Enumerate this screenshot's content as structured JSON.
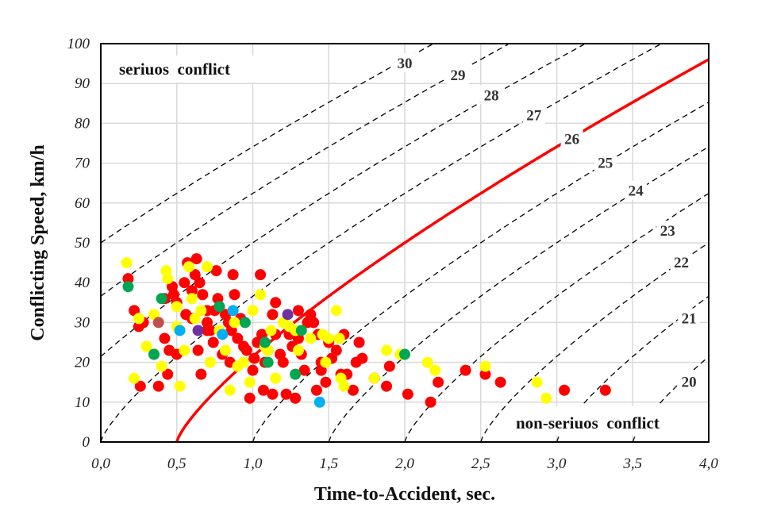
{
  "chart_data": {
    "type": "scatter",
    "title": "",
    "xlabel": "Time-to-Accident, sec.",
    "ylabel": "Conflicting Speed, km/h",
    "xlim": [
      0,
      4.0
    ],
    "ylim": [
      0,
      100
    ],
    "x_ticks": [
      "0,0",
      "0,5",
      "1,0",
      "1,5",
      "2,0",
      "2,5",
      "3,0",
      "3,5",
      "4,0"
    ],
    "y_ticks": [
      "0",
      "10",
      "20",
      "30",
      "40",
      "50",
      "60",
      "70",
      "80",
      "90",
      "100"
    ],
    "grid": true,
    "annotations": {
      "serious": "seriuos  conflict",
      "non_serious": "non-seriuos  conflict"
    },
    "curve_model": {
      "a": 36.6,
      "p": 0.77
    },
    "curves": [
      {
        "label": "30",
        "t0": -1.5,
        "label_at": [
          2.0,
          95
        ],
        "style": "dashed"
      },
      {
        "label": "29",
        "t0": -1.0,
        "label_at": [
          2.35,
          92
        ],
        "style": "dashed"
      },
      {
        "label": "28",
        "t0": -0.5,
        "label_at": [
          2.57,
          87
        ],
        "style": "dashed"
      },
      {
        "label": "27",
        "t0": 0.0,
        "label_at": [
          2.85,
          82
        ],
        "style": "dashed"
      },
      {
        "label": "26",
        "t0": 0.5,
        "label_at": [
          3.1,
          76
        ],
        "style": "threshold"
      },
      {
        "label": "25",
        "t0": 1.0,
        "label_at": [
          3.32,
          70
        ],
        "style": "dashed"
      },
      {
        "label": "24",
        "t0": 1.5,
        "label_at": [
          3.52,
          63
        ],
        "style": "dashed"
      },
      {
        "label": "23",
        "t0": 2.0,
        "label_at": [
          3.73,
          53
        ],
        "style": "dashed"
      },
      {
        "label": "22",
        "t0": 2.5,
        "label_at": [
          3.82,
          45
        ],
        "style": "dashed"
      },
      {
        "label": "21",
        "t0": 3.0,
        "label_at": [
          3.87,
          31
        ],
        "style": "dashed"
      },
      {
        "label": "20",
        "t0": 3.5,
        "label_at": [
          3.87,
          15
        ],
        "style": "dashed"
      }
    ],
    "series": [
      {
        "name": "red",
        "color": "#FF0000",
        "points": [
          [
            0.18,
            41
          ],
          [
            0.22,
            33
          ],
          [
            0.25,
            29
          ],
          [
            0.26,
            14
          ],
          [
            0.35,
            22
          ],
          [
            0.38,
            14
          ],
          [
            0.42,
            36
          ],
          [
            0.42,
            26
          ],
          [
            0.44,
            17
          ],
          [
            0.45,
            23
          ],
          [
            0.47,
            39
          ],
          [
            0.48,
            37
          ],
          [
            0.5,
            35
          ],
          [
            0.5,
            22
          ],
          [
            0.55,
            40
          ],
          [
            0.56,
            32
          ],
          [
            0.57,
            45
          ],
          [
            0.6,
            38
          ],
          [
            0.62,
            42
          ],
          [
            0.63,
            46
          ],
          [
            0.64,
            23
          ],
          [
            0.65,
            40
          ],
          [
            0.66,
            17
          ],
          [
            0.67,
            37
          ],
          [
            0.7,
            33
          ],
          [
            0.7,
            30
          ],
          [
            0.72,
            28
          ],
          [
            0.74,
            25
          ],
          [
            0.76,
            43
          ],
          [
            0.77,
            36
          ],
          [
            0.78,
            34
          ],
          [
            0.8,
            22
          ],
          [
            0.82,
            32
          ],
          [
            0.84,
            30
          ],
          [
            0.86,
            28
          ],
          [
            0.87,
            42
          ],
          [
            0.88,
            37
          ],
          [
            0.9,
            26
          ],
          [
            0.92,
            31
          ],
          [
            0.94,
            24
          ],
          [
            0.96,
            23
          ],
          [
            0.98,
            11
          ],
          [
            1.0,
            18
          ],
          [
            1.01,
            21
          ],
          [
            1.03,
            25
          ],
          [
            1.05,
            42
          ],
          [
            1.06,
            27
          ],
          [
            1.07,
            13
          ],
          [
            1.08,
            20
          ],
          [
            1.1,
            23
          ],
          [
            1.13,
            12
          ],
          [
            1.13,
            32
          ],
          [
            1.15,
            35
          ],
          [
            1.18,
            22
          ],
          [
            1.2,
            20
          ],
          [
            1.22,
            12
          ],
          [
            1.24,
            27
          ],
          [
            1.26,
            24
          ],
          [
            1.28,
            11
          ],
          [
            1.3,
            33
          ],
          [
            1.32,
            22
          ],
          [
            1.34,
            18
          ],
          [
            1.36,
            30
          ],
          [
            1.38,
            32
          ],
          [
            1.4,
            30
          ],
          [
            1.42,
            13
          ],
          [
            1.43,
            27
          ],
          [
            1.45,
            18
          ],
          [
            1.45,
            20
          ],
          [
            1.48,
            15
          ],
          [
            1.5,
            25
          ],
          [
            1.52,
            21
          ],
          [
            1.55,
            23
          ],
          [
            1.6,
            27
          ],
          [
            1.62,
            17
          ],
          [
            1.66,
            13
          ],
          [
            1.68,
            20
          ],
          [
            1.7,
            25
          ],
          [
            1.72,
            21
          ],
          [
            1.8,
            16
          ],
          [
            1.88,
            14
          ],
          [
            1.9,
            19
          ],
          [
            2.02,
            12
          ],
          [
            2.17,
            10
          ],
          [
            2.22,
            15
          ],
          [
            2.4,
            18
          ],
          [
            2.53,
            17
          ],
          [
            2.63,
            15
          ],
          [
            3.05,
            13
          ],
          [
            3.32,
            13
          ],
          [
            0.28,
            30
          ],
          [
            0.6,
            31
          ],
          [
            0.7,
            28
          ],
          [
            1.15,
            27
          ],
          [
            1.3,
            26
          ],
          [
            1.58,
            17
          ],
          [
            0.75,
            33
          ],
          [
            0.85,
            20
          ]
        ]
      },
      {
        "name": "yellow",
        "color": "#FFFF00",
        "points": [
          [
            0.17,
            45
          ],
          [
            0.22,
            16
          ],
          [
            0.25,
            31
          ],
          [
            0.3,
            24
          ],
          [
            0.35,
            32
          ],
          [
            0.4,
            19
          ],
          [
            0.43,
            43
          ],
          [
            0.44,
            41
          ],
          [
            0.5,
            34
          ],
          [
            0.5,
            29
          ],
          [
            0.52,
            14
          ],
          [
            0.58,
            44
          ],
          [
            0.6,
            36
          ],
          [
            0.62,
            31
          ],
          [
            0.66,
            33
          ],
          [
            0.7,
            44
          ],
          [
            0.72,
            20
          ],
          [
            0.78,
            28
          ],
          [
            0.82,
            23
          ],
          [
            0.85,
            13
          ],
          [
            0.88,
            30
          ],
          [
            0.9,
            19
          ],
          [
            0.94,
            20
          ],
          [
            0.98,
            15
          ],
          [
            1.0,
            33
          ],
          [
            1.05,
            37
          ],
          [
            1.08,
            24
          ],
          [
            1.1,
            23
          ],
          [
            1.12,
            28
          ],
          [
            1.15,
            16
          ],
          [
            1.2,
            30
          ],
          [
            1.24,
            29
          ],
          [
            1.28,
            28
          ],
          [
            1.3,
            23
          ],
          [
            1.38,
            26
          ],
          [
            1.46,
            27
          ],
          [
            1.5,
            26
          ],
          [
            1.48,
            20
          ],
          [
            1.55,
            33
          ],
          [
            1.57,
            26
          ],
          [
            1.58,
            16
          ],
          [
            1.6,
            14
          ],
          [
            1.8,
            16
          ],
          [
            1.88,
            23
          ],
          [
            1.97,
            22
          ],
          [
            2.15,
            20
          ],
          [
            2.2,
            18
          ],
          [
            2.53,
            19
          ],
          [
            2.87,
            15
          ],
          [
            2.93,
            11
          ],
          [
            0.55,
            23
          ]
        ]
      },
      {
        "name": "green",
        "color": "#00A651",
        "points": [
          [
            0.18,
            39
          ],
          [
            0.4,
            36
          ],
          [
            0.35,
            22
          ],
          [
            0.78,
            34
          ],
          [
            0.95,
            30
          ],
          [
            1.1,
            20
          ],
          [
            1.28,
            17
          ],
          [
            1.32,
            28
          ],
          [
            2.0,
            22
          ],
          [
            1.08,
            25
          ]
        ]
      },
      {
        "name": "blue",
        "color": "#00B0F0",
        "points": [
          [
            0.52,
            28
          ],
          [
            0.8,
            27
          ],
          [
            0.87,
            33
          ],
          [
            1.44,
            10
          ]
        ]
      },
      {
        "name": "purple",
        "color": "#7030A0",
        "points": [
          [
            0.64,
            28
          ],
          [
            1.23,
            32
          ]
        ]
      },
      {
        "name": "brown",
        "color": "#C0504D",
        "points": [
          [
            0.38,
            30
          ]
        ]
      }
    ],
    "colors": {
      "threshold": "#FF0000",
      "dashed": "#000000",
      "grid": "#D9D9D9",
      "frame": "#000000"
    }
  }
}
